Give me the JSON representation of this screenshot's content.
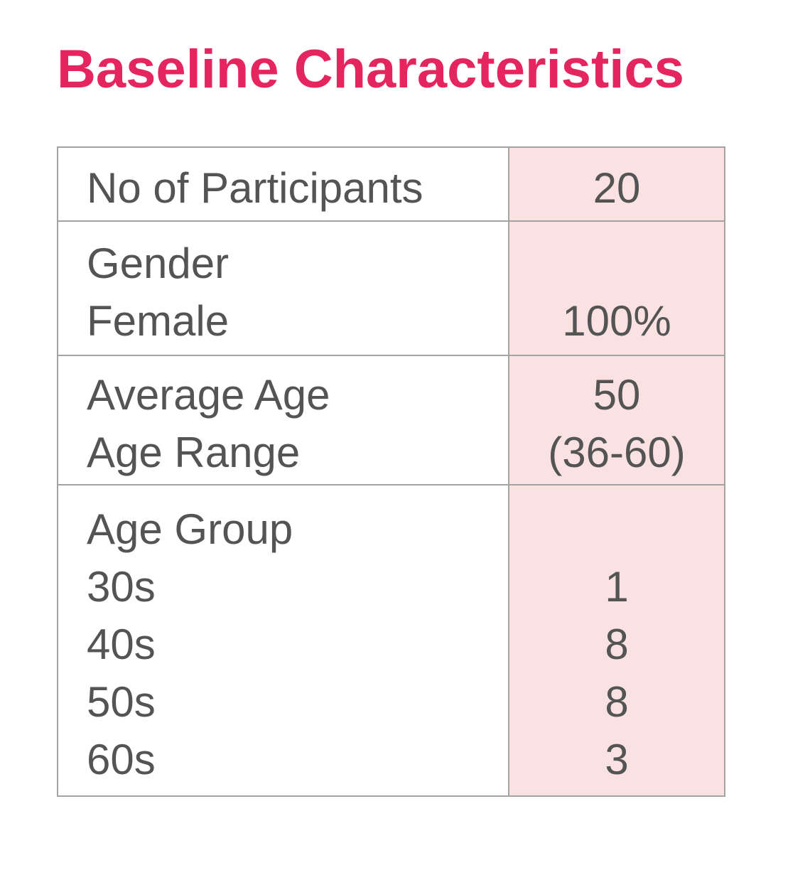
{
  "title": {
    "text": "Baseline Characteristics",
    "color": "#E5255E"
  },
  "table": {
    "border_color": "#A3A3A3",
    "text_color": "#545454",
    "value_column_bg": "#FAE2E2",
    "rows": [
      {
        "name": "participants",
        "labels": [
          "No of Participants"
        ],
        "values": [
          "20"
        ]
      },
      {
        "name": "gender",
        "labels": [
          "Gender",
          "Female"
        ],
        "values": [
          "",
          "100%"
        ]
      },
      {
        "name": "age",
        "labels": [
          "Average Age",
          "Age Range"
        ],
        "values": [
          "50",
          "(36-60)"
        ]
      },
      {
        "name": "age-group",
        "labels": [
          "Age Group",
          "30s",
          "40s",
          "50s",
          "60s"
        ],
        "values": [
          "",
          "1",
          "8",
          "8",
          "3"
        ]
      }
    ]
  }
}
